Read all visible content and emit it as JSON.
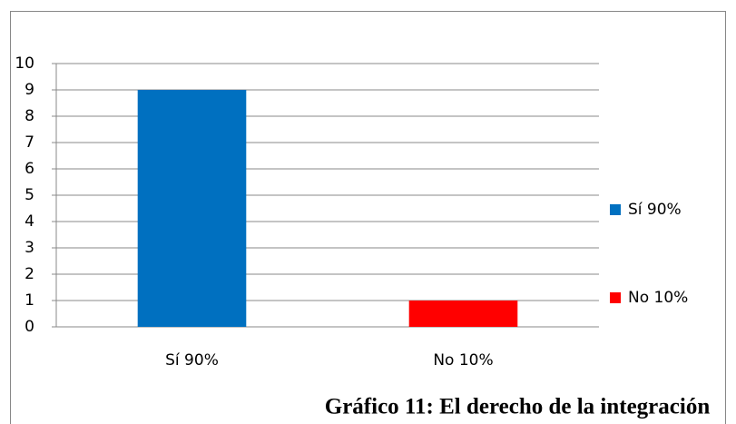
{
  "chart_data": {
    "type": "bar",
    "title": "Gráfico 11: El derecho de la integración",
    "categories": [
      "Sí 90%",
      "No 10%"
    ],
    "values": [
      9,
      1
    ],
    "colors": [
      "#0070c0",
      "#ff0000"
    ],
    "ylim": [
      0,
      10
    ],
    "yticks": [
      0,
      1,
      2,
      3,
      4,
      5,
      6,
      7,
      8,
      9,
      10
    ],
    "grid": true,
    "legend": "right"
  }
}
